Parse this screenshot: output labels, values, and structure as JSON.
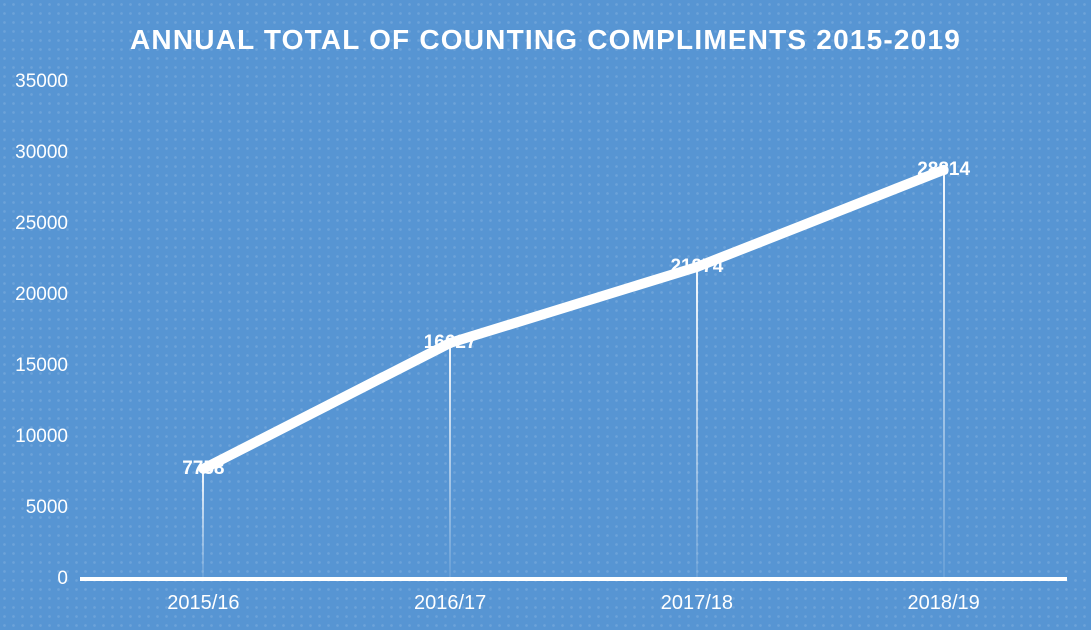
{
  "chart_data": {
    "type": "line",
    "title": "ANNUAL TOTAL OF COUNTING COMPLIMENTS 2015-2019",
    "categories": [
      "2015/16",
      "2016/17",
      "2017/18",
      "2018/19"
    ],
    "values": [
      7758,
      16627,
      21974,
      28814
    ],
    "xlabel": "",
    "ylabel": "",
    "ylim": [
      0,
      35000
    ],
    "ytick_step": 5000,
    "yticks": [
      35000,
      30000,
      25000,
      20000,
      15000,
      10000,
      5000,
      0
    ],
    "grid": false,
    "legend": false,
    "data_labels": true,
    "drop_lines": true,
    "colors": {
      "background": "#5795D3",
      "line": "#FFFFFF",
      "text": "#FFFFFF"
    }
  }
}
